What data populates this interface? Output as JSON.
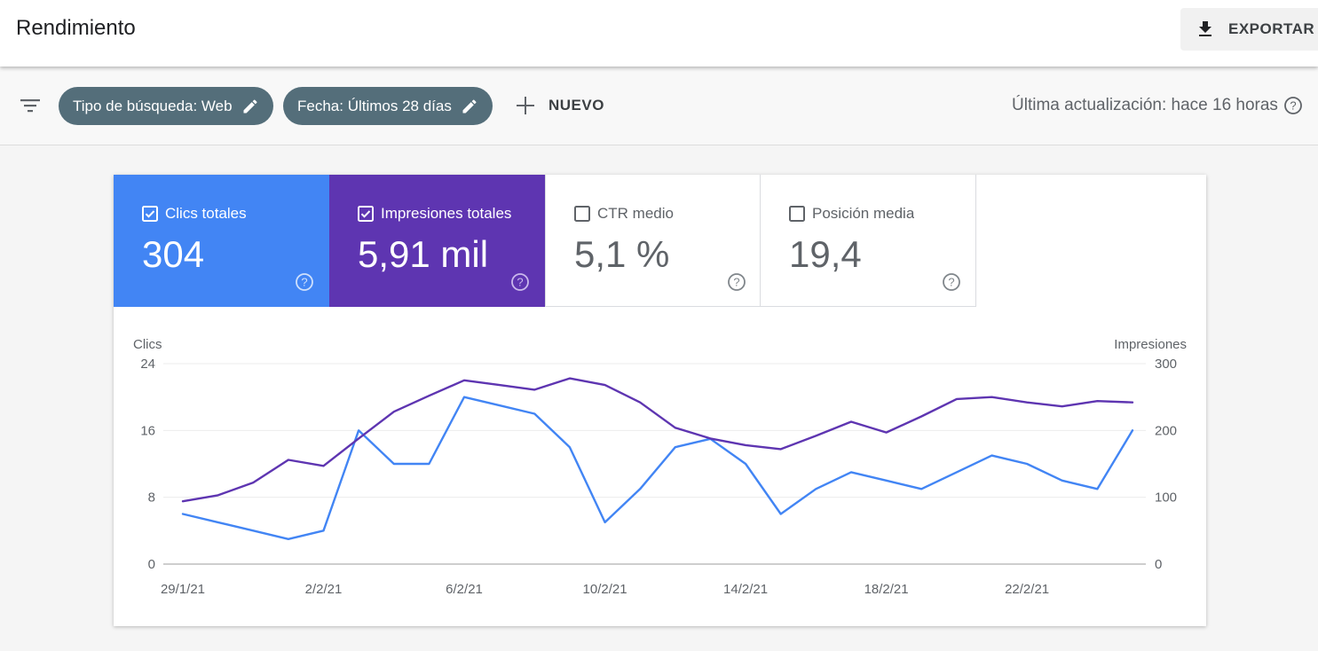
{
  "header": {
    "title": "Rendimiento",
    "export_label": "EXPORTAR"
  },
  "filters": {
    "chips": [
      {
        "label": "Tipo de búsqueda: Web"
      },
      {
        "label": "Fecha: Últimos 28 días"
      }
    ],
    "new_label": "NUEVO",
    "last_update": "Última actualización: hace 16 horas"
  },
  "metrics": [
    {
      "label": "Clics totales",
      "value": "304",
      "checked": true,
      "color": "#4285f4"
    },
    {
      "label": "Impresiones totales",
      "value": "5,91 mil",
      "checked": true,
      "color": "#5e35b1"
    },
    {
      "label": "CTR medio",
      "value": "5,1 %",
      "checked": false
    },
    {
      "label": "Posición media",
      "value": "19,4",
      "checked": false
    }
  ],
  "chart_data": {
    "type": "line",
    "left_axis_label": "Clics",
    "right_axis_label": "Impresiones",
    "left_ticks": [
      "0",
      "8",
      "16",
      "24"
    ],
    "right_ticks": [
      "0",
      "100",
      "200",
      "300"
    ],
    "ylim_left": [
      0,
      24
    ],
    "ylim_right": [
      0,
      300
    ],
    "x": [
      "29/1/21",
      "30/1/21",
      "31/1/21",
      "1/2/21",
      "2/2/21",
      "3/2/21",
      "4/2/21",
      "5/2/21",
      "6/2/21",
      "7/2/21",
      "8/2/21",
      "9/2/21",
      "10/2/21",
      "11/2/21",
      "12/2/21",
      "13/2/21",
      "14/2/21",
      "15/2/21",
      "16/2/21",
      "17/2/21",
      "18/2/21",
      "19/2/21",
      "20/2/21",
      "21/2/21",
      "22/2/21",
      "23/2/21",
      "24/2/21",
      "25/2/21"
    ],
    "x_tick_labels": [
      "29/1/21",
      "2/2/21",
      "6/2/21",
      "10/2/21",
      "14/2/21",
      "18/2/21",
      "22/2/21"
    ],
    "series": [
      {
        "name": "Clics",
        "axis": "left",
        "color": "#4285f4",
        "values": [
          6,
          5,
          4,
          3,
          4,
          16,
          12,
          12,
          20,
          19,
          18,
          14,
          5,
          9,
          14,
          15,
          12,
          6,
          9,
          11,
          10,
          9,
          11,
          13,
          12,
          10,
          9,
          16
        ]
      },
      {
        "name": "Impresiones",
        "axis": "right",
        "color": "#5e35b1",
        "values": [
          94,
          103,
          122,
          156,
          147,
          188,
          228,
          252,
          275,
          268,
          261,
          278,
          268,
          242,
          204,
          188,
          178,
          172,
          192,
          213,
          197,
          221,
          247,
          250,
          242,
          236,
          244,
          242
        ]
      }
    ]
  }
}
